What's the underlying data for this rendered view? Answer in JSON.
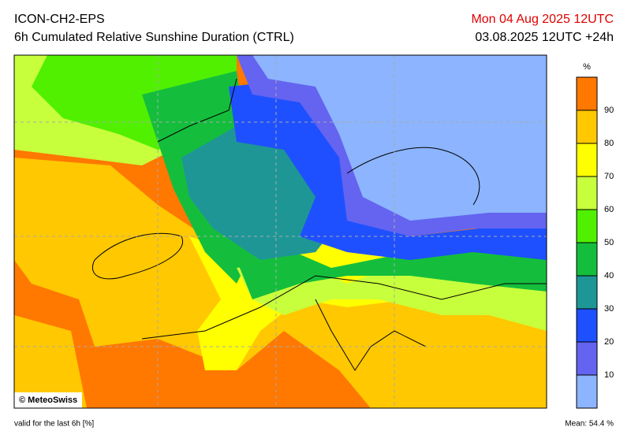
{
  "header": {
    "model": "ICON-CH2-EPS",
    "product": "6h Cumulated Relative Sunshine Duration (CTRL)",
    "valid_time": "Mon 04 Aug 2025 12UTC",
    "run": "03.08.2025 12UTC +24h"
  },
  "map": {
    "copyright": "© MeteoSwiss"
  },
  "colorbar": {
    "unit": "%",
    "range": [
      0,
      100
    ],
    "colors": [
      "#8cb4ff",
      "#6464f0",
      "#1e50ff",
      "#1e9696",
      "#14be3c",
      "#50f000",
      "#c8ff3c",
      "#ffff00",
      "#ffc800",
      "#ff7800"
    ],
    "ticks": [
      10,
      20,
      30,
      40,
      50,
      60,
      70,
      80,
      90
    ]
  },
  "footer": {
    "note": "valid for the last 6h [%]",
    "mean": "Mean:  54.4 %"
  }
}
